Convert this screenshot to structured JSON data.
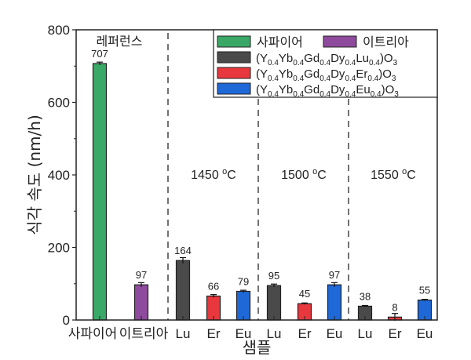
{
  "chart_data": {
    "type": "bar",
    "title": "",
    "xlabel": "샘플",
    "ylabel": "식각 속도 (nm/h)",
    "ylim": [
      0,
      800
    ],
    "yticks": [
      0,
      200,
      400,
      600,
      800
    ],
    "grid": false,
    "legend_position": "top-right (inside)",
    "categories": [
      "사파이어",
      "이트리아",
      "Lu",
      "Er",
      "Eu",
      "Lu",
      "Er",
      "Eu",
      "Lu",
      "Er",
      "Eu"
    ],
    "values": [
      707,
      97,
      164,
      66,
      79,
      95,
      45,
      97,
      38,
      8,
      55
    ],
    "bar_series": [
      "sapphire",
      "yttria",
      "lu",
      "er",
      "eu",
      "lu",
      "er",
      "eu",
      "lu",
      "er",
      "eu"
    ],
    "series": [
      {
        "key": "sapphire",
        "name": "사파이어",
        "color": "#3aa867",
        "values": [
          707
        ]
      },
      {
        "key": "yttria",
        "name": "이트리아",
        "color": "#8e4a9c",
        "values": [
          97
        ]
      },
      {
        "key": "lu",
        "name": "(Y0.4Yb0.4Gd0.4Dy0.4Lu0.4)O3",
        "color": "#4a4a4a",
        "values": [
          164,
          95,
          38
        ]
      },
      {
        "key": "er",
        "name": "(Y0.4Yb0.4Gd0.4Dy0.4Er0.4)O3",
        "color": "#e8383d",
        "values": [
          66,
          45,
          8
        ]
      },
      {
        "key": "eu",
        "name": "(Y0.4Yb0.4Gd0.4Dy0.4Eu0.4)O3",
        "color": "#1f68d8",
        "values": [
          79,
          97,
          55
        ]
      }
    ],
    "groups": [
      {
        "label": "레퍼런스",
        "categories": [
          "사파이어",
          "이트리아"
        ]
      },
      {
        "label": "1450 °C",
        "categories": [
          "Lu",
          "Er",
          "Eu"
        ]
      },
      {
        "label": "1500 °C",
        "categories": [
          "Lu",
          "Er",
          "Eu"
        ]
      },
      {
        "label": "1550 °C",
        "categories": [
          "Lu",
          "Er",
          "Eu"
        ]
      }
    ],
    "annotations": [
      "레퍼런스",
      "1450 °C",
      "1500 °C",
      "1550 °C"
    ],
    "data_labels": [
      "707",
      "97",
      "164",
      "66",
      "79",
      "95",
      "45",
      "97",
      "38",
      "8",
      "55"
    ],
    "error_bars": true
  },
  "legend": {
    "row1": [
      {
        "key": "sapphire",
        "label": "사파이어"
      },
      {
        "key": "yttria",
        "label": "이트리아"
      }
    ],
    "formulas": [
      {
        "key": "lu",
        "el": "Lu"
      },
      {
        "key": "er",
        "el": "Er"
      },
      {
        "key": "eu",
        "el": "Eu"
      }
    ]
  }
}
